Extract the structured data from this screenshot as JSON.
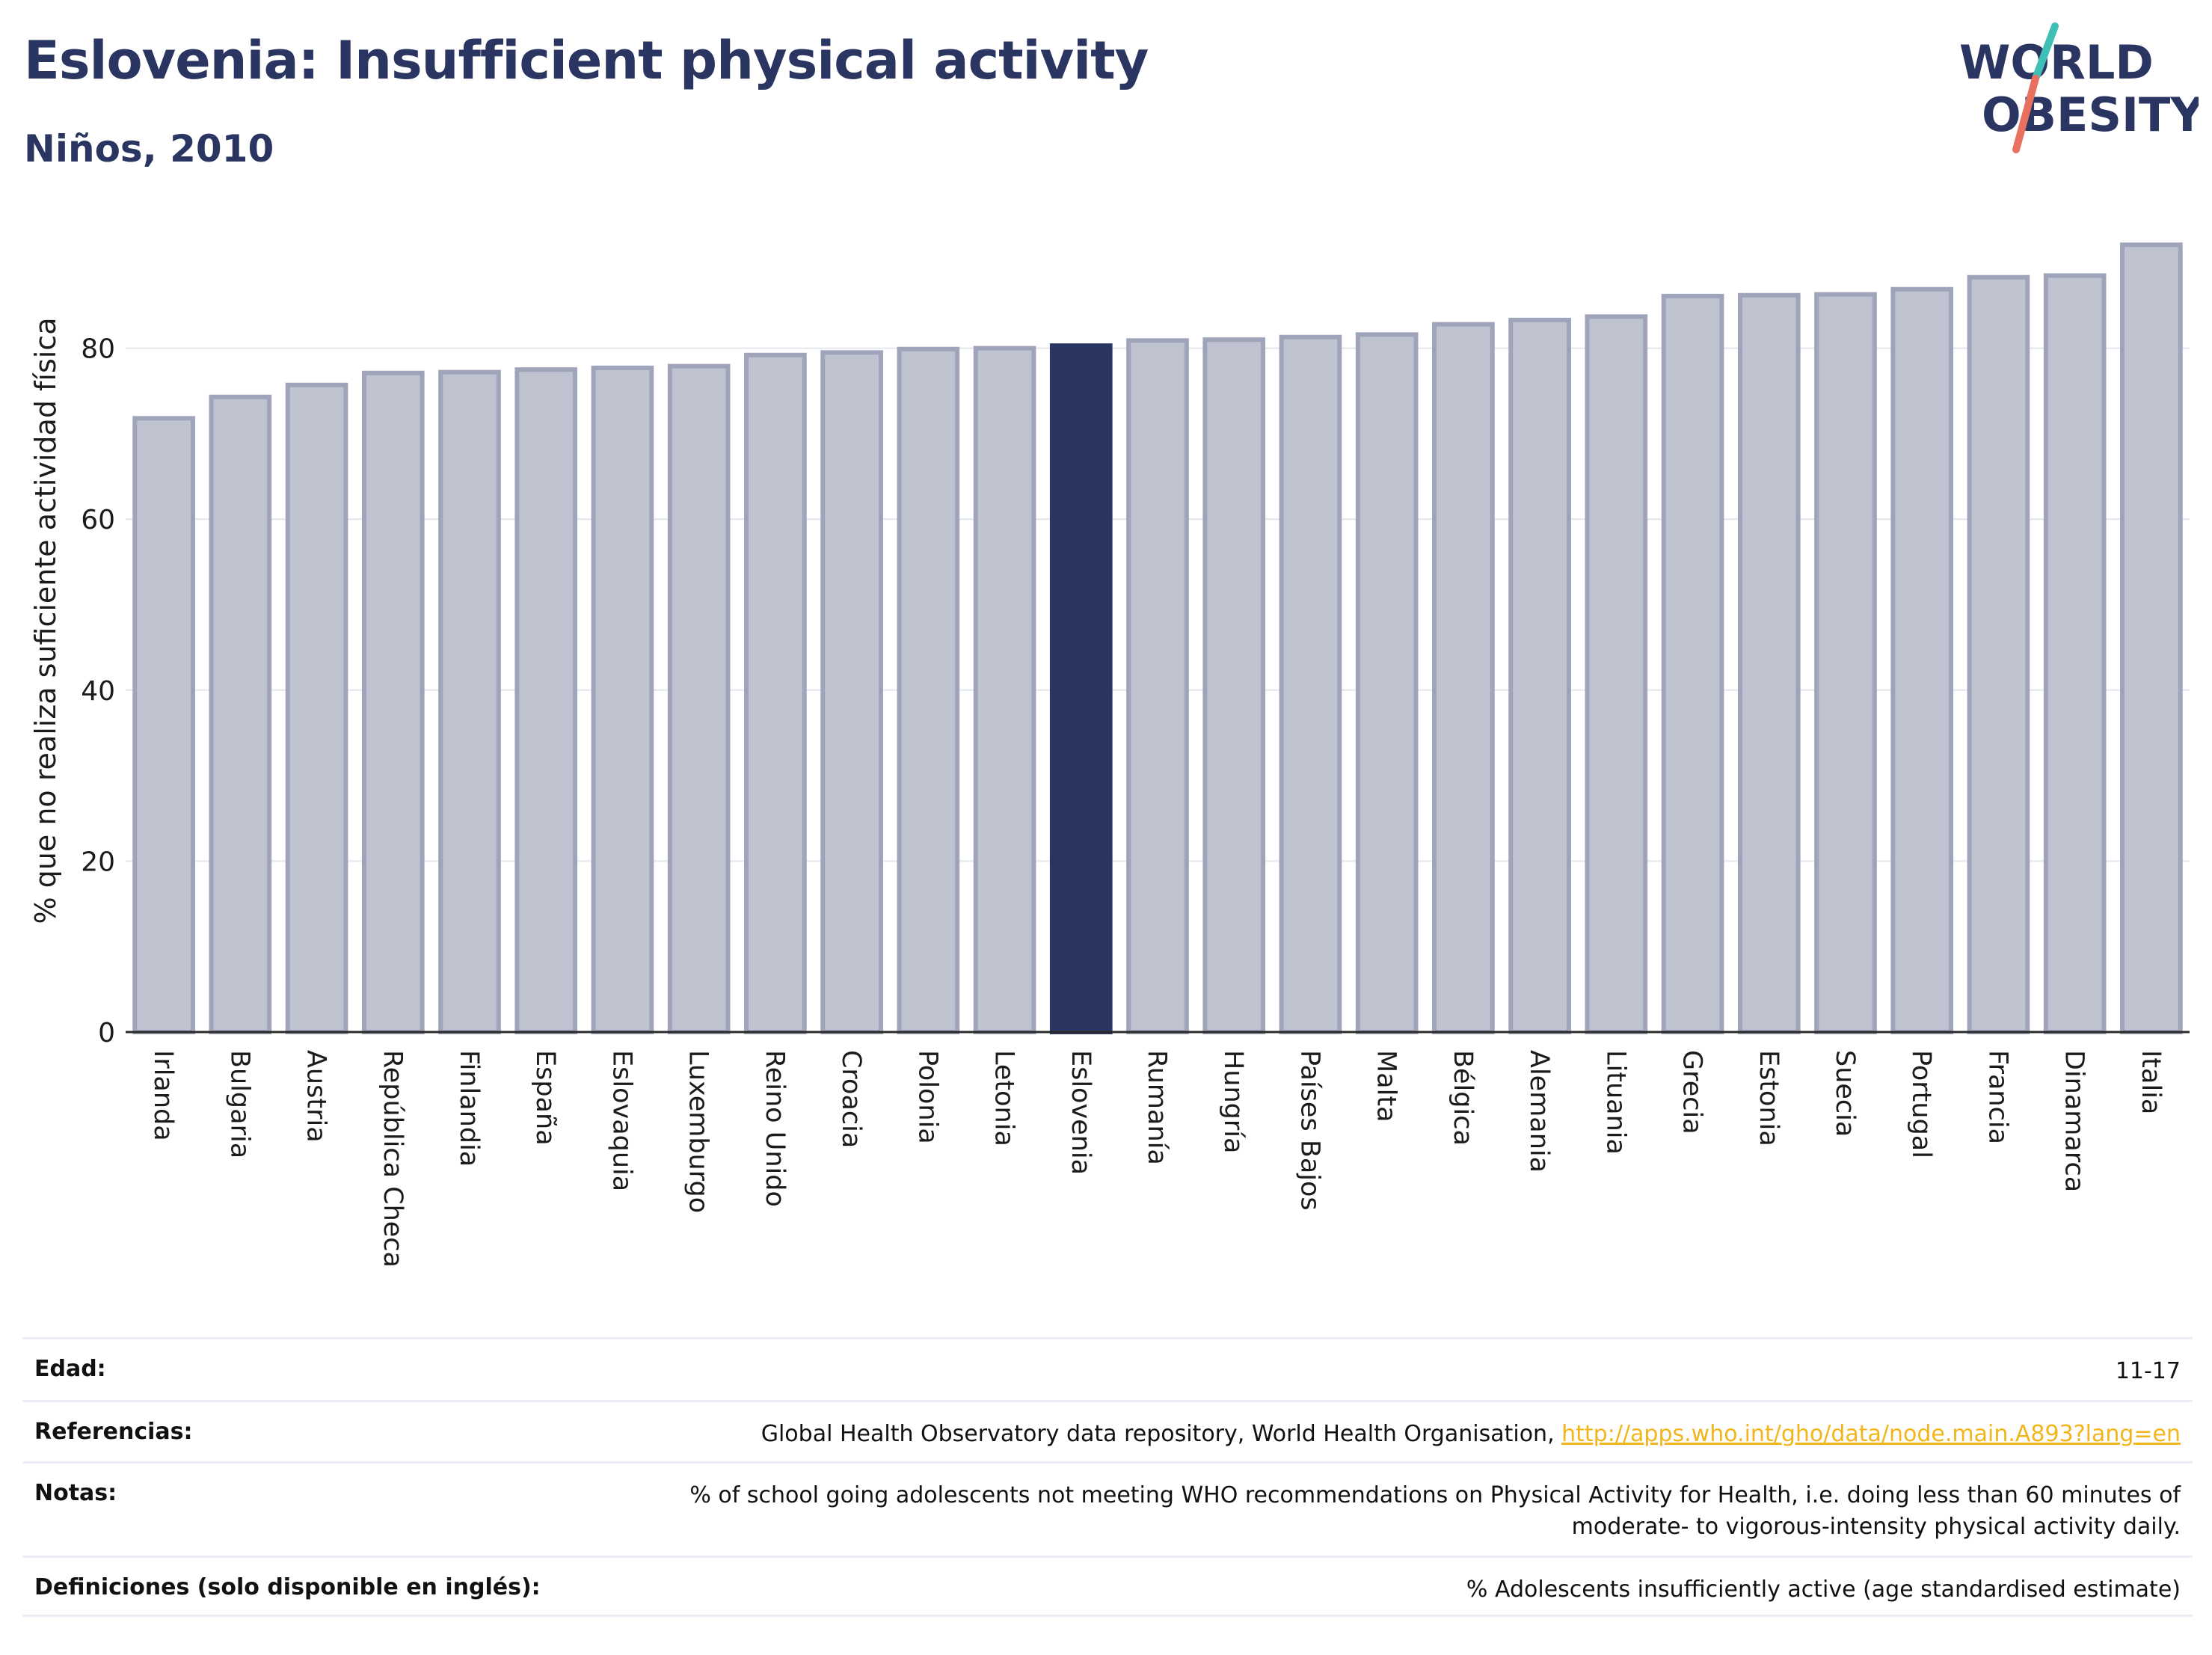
{
  "header": {
    "title": "Eslovenia: Insufficient physical activity",
    "subtitle": "Niños, 2010"
  },
  "logo": {
    "line1": "WORLD",
    "line2": "OBESITY"
  },
  "colors": {
    "highlight": "#2a3561",
    "bar_fill": "#bfc2cf",
    "bar_stroke": "#9fa4bb",
    "grid": "#e4e6ee",
    "logo_teal": "#3fbfb5",
    "logo_coral": "#e9705e",
    "link": "#f2b51b"
  },
  "chart_data": {
    "type": "bar",
    "ylabel": "% que no realiza suficiente actividad física",
    "ylim": [
      0,
      95
    ],
    "yticks": [
      0,
      20,
      40,
      60,
      80
    ],
    "grid": true,
    "highlight": "Eslovenia",
    "categories": [
      "Irlanda",
      "Bulgaria",
      "Austria",
      "República Checa",
      "Finlandia",
      "España",
      "Eslovaquia",
      "Luxemburgo",
      "Reino Unido",
      "Croacia",
      "Polonia",
      "Letonia",
      "Eslovenia",
      "Rumanía",
      "Hungría",
      "Países Bajos",
      "Malta",
      "Bélgica",
      "Alemania",
      "Lituania",
      "Grecia",
      "Estonia",
      "Suecia",
      "Portugal",
      "Francia",
      "Dinamarca",
      "Italia"
    ],
    "values": [
      71.8,
      74.3,
      75.7,
      77.1,
      77.2,
      77.5,
      77.7,
      77.9,
      79.2,
      79.5,
      79.9,
      80.0,
      80.3,
      80.9,
      81.0,
      81.3,
      81.6,
      82.8,
      83.3,
      83.7,
      86.1,
      86.2,
      86.3,
      86.9,
      88.3,
      88.5,
      92.1
    ]
  },
  "meta": {
    "age_label": "Edad:",
    "age_value": "11-17",
    "ref_label": "Referencias:",
    "ref_text": "Global Health Observatory data repository, World Health Organisation, ",
    "ref_link": "http://apps.who.int/gho/data/node.main.A893?lang=en",
    "notes_label": "Notas:",
    "notes_text": "% of school going adolescents not meeting WHO recommendations on Physical Activity for Health, i.e. doing less than 60 minutes of moderate- to vigorous-intensity physical activity daily.",
    "def_label": "Definiciones (solo disponible en inglés):",
    "def_text": "% Adolescents insufficiently active (age standardised estimate)"
  }
}
